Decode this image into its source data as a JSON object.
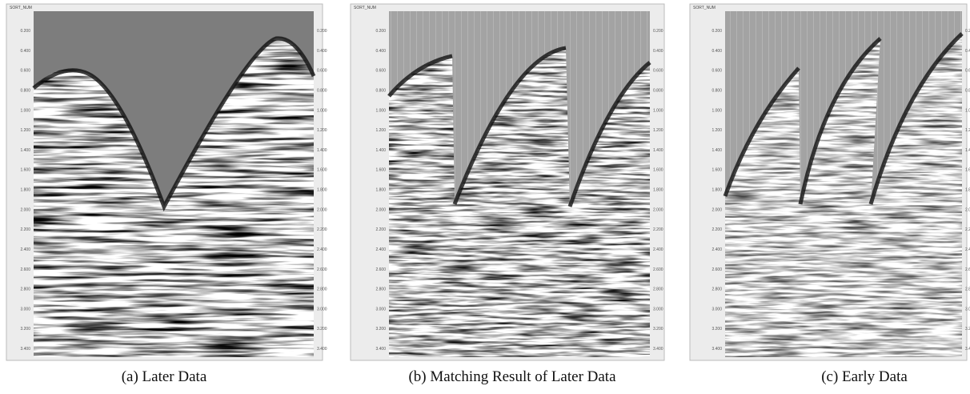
{
  "panels": [
    {
      "header": "SORT_NUM",
      "caption": "(a) Later Data"
    },
    {
      "header": "SORT_NUM",
      "caption": "(b) Matching Result of Later Data"
    },
    {
      "header": "SORT_NUM",
      "caption": "(c) Early Data"
    }
  ],
  "axis_labels": [
    "0.200",
    "0.400",
    "0.600",
    "0.800",
    "1.000",
    "1.200",
    "1.400",
    "1.600",
    "1.800",
    "2.000",
    "2.200",
    "2.400",
    "2.600",
    "2.800",
    "3.000",
    "3.200",
    "3.400"
  ]
}
